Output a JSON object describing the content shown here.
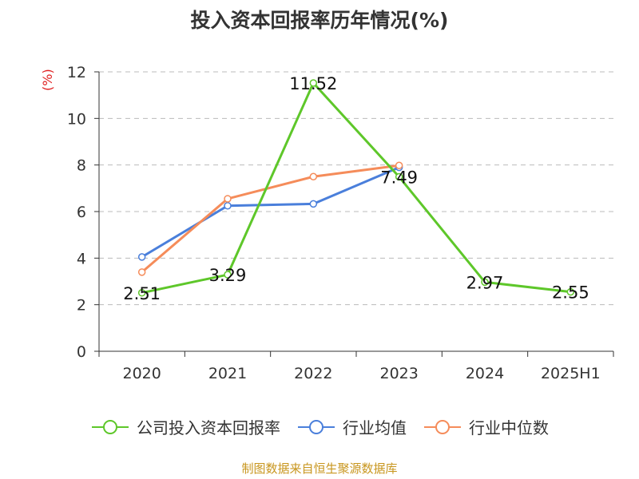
{
  "title": "投入资本回报率历年情况(%)",
  "unit_label": "(%)",
  "source": "制图数据来自恒生聚源数据库",
  "colors": {
    "company": "#5ec72a",
    "industry_avg": "#4a7fdb",
    "industry_median": "#f58c5a",
    "axis": "#333333",
    "grid": "#bbbbbb"
  },
  "chart_data": {
    "type": "line",
    "categories": [
      "2020",
      "2021",
      "2022",
      "2023",
      "2024",
      "2025H1"
    ],
    "ylim": [
      0,
      12
    ],
    "yticks": [
      0,
      2,
      4,
      6,
      8,
      10,
      12
    ],
    "grid": true,
    "legend_position": "bottom",
    "series": [
      {
        "name": "公司投入资本回报率",
        "values": [
          2.51,
          3.29,
          11.52,
          7.49,
          2.97,
          2.55
        ],
        "show_labels": true
      },
      {
        "name": "行业均值",
        "values": [
          4.05,
          6.25,
          6.33,
          7.9,
          null,
          null
        ]
      },
      {
        "name": "行业中位数",
        "values": [
          3.4,
          6.55,
          7.5,
          7.98,
          null,
          null
        ]
      }
    ],
    "data_labels": [
      "2.51",
      "3.29",
      "11.52",
      "7.49",
      "2.97",
      "2.55"
    ]
  }
}
